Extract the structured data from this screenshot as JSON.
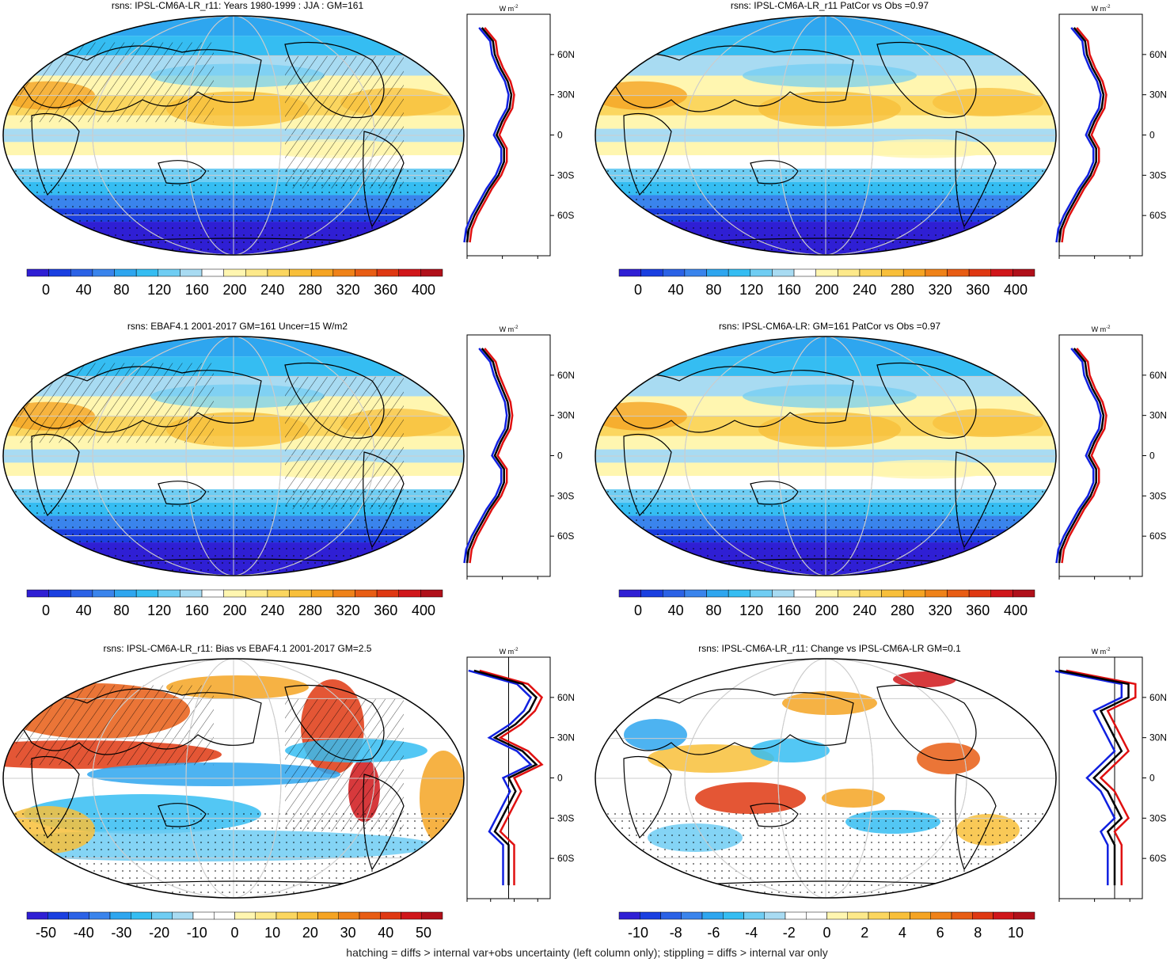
{
  "colors": {
    "abs_scale": [
      "#2f1fd4",
      "#1a3fe0",
      "#2b62e6",
      "#3a84ec",
      "#2ea6ef",
      "#35bdf2",
      "#6fcdf3",
      "#a8dbf2",
      "#ffffff",
      "#fff6b0",
      "#fde98a",
      "#fbd65f",
      "#f8bf3a",
      "#f5a423",
      "#ef8219",
      "#e85d14",
      "#df3812",
      "#d0161a",
      "#b0101a"
    ],
    "diff_scale": [
      "#2f1fd4",
      "#1a3fe0",
      "#2b62e6",
      "#3a84ec",
      "#2ea6ef",
      "#35bdf2",
      "#6fcdf3",
      "#a8dbf2",
      "#ffffff",
      "#ffffff",
      "#fff6b0",
      "#fde98a",
      "#fbd65f",
      "#f8bf3a",
      "#f5a423",
      "#ef8219",
      "#e85d14",
      "#df3812",
      "#d0161a",
      "#b0101a"
    ],
    "line_black": "#000000",
    "line_red": "#e01010",
    "line_blue": "#1020e0"
  },
  "footnote": "hatching = diffs > internal var+obs uncertainty (left column only); stippling = diffs > internal var only",
  "panels": [
    {
      "title": "rsns: IPSL-CM6A-LR_r11: Years 1980-1999 : JJA : GM=161",
      "colorbar_labels": [
        "0",
        "40",
        "80",
        "120",
        "160",
        "200",
        "240",
        "280",
        "320",
        "360",
        "400"
      ],
      "scale": "abs",
      "hatched": true,
      "profile_units": "W m-2",
      "lat_labels": [
        "60N",
        "30N",
        "0",
        "30S",
        "60S"
      ],
      "profile_ticks": [
        "0",
        "200",
        "400"
      ]
    },
    {
      "title": "rsns: IPSL-CM6A-LR_r11 PatCor vs Obs =0.97",
      "colorbar_labels": [
        "0",
        "40",
        "80",
        "120",
        "160",
        "200",
        "240",
        "280",
        "320",
        "360",
        "400"
      ],
      "scale": "abs",
      "hatched": false,
      "profile_units": "W m-2",
      "lat_labels": [
        "60N",
        "30N",
        "0",
        "30S",
        "60S"
      ],
      "profile_ticks": [
        "0",
        "200",
        "400"
      ]
    },
    {
      "title": "rsns: EBAF4.1 2001-2017 GM=161 Uncer=15 W/m2",
      "colorbar_labels": [
        "0",
        "40",
        "80",
        "120",
        "160",
        "200",
        "240",
        "280",
        "320",
        "360",
        "400"
      ],
      "scale": "abs",
      "hatched": true,
      "profile_units": "W m-2",
      "lat_labels": [
        "60N",
        "30N",
        "0",
        "30S",
        "60S"
      ],
      "profile_ticks": [
        "0",
        "200",
        "400"
      ]
    },
    {
      "title": "rsns: IPSL-CM6A-LR: GM=161 PatCor vs Obs =0.97",
      "colorbar_labels": [
        "0",
        "40",
        "80",
        "120",
        "160",
        "200",
        "240",
        "280",
        "320",
        "360",
        "400"
      ],
      "scale": "abs",
      "hatched": false,
      "profile_units": "W m-2",
      "lat_labels": [
        "60N",
        "30N",
        "0",
        "30S",
        "60S"
      ],
      "profile_ticks": [
        "0",
        "200",
        "400"
      ]
    },
    {
      "title": "rsns: IPSL-CM6A-LR_r11: Bias vs EBAF4.1 2001-2017 GM=2.5",
      "colorbar_labels": [
        "-50",
        "-40",
        "-30",
        "-20",
        "-10",
        "0",
        "10",
        "20",
        "30",
        "40",
        "50"
      ],
      "scale": "diff",
      "hatched": true,
      "profile_units": "W m-2",
      "lat_labels": [
        "60N",
        "30N",
        "0",
        "30S",
        "60S"
      ],
      "profile_ticks": [
        "-30",
        "-10",
        "10",
        "30"
      ]
    },
    {
      "title": "rsns: IPSL-CM6A-LR_r11: Change vs IPSL-CM6A-LR GM=0.1",
      "colorbar_labels": [
        "-10",
        "-8",
        "-6",
        "-4",
        "-2",
        "0",
        "2",
        "4",
        "6",
        "8",
        "10"
      ],
      "scale": "diff",
      "hatched": false,
      "profile_units": "W m-2",
      "lat_labels": [
        "60N",
        "30N",
        "0",
        "30S",
        "60S"
      ],
      "profile_ticks": [
        "-6.0",
        "-2.0",
        "2.0"
      ]
    }
  ],
  "chart_data": [
    {
      "type": "heatmap",
      "title": "rsns: IPSL-CM6A-LR_r11: Years 1980-1999 : JJA : GM=161",
      "colorbar": [
        0,
        40,
        80,
        120,
        160,
        200,
        240,
        280,
        320,
        360,
        400
      ],
      "zonal_profile": {
        "lat": [
          80,
          70,
          60,
          50,
          40,
          30,
          20,
          10,
          0,
          -10,
          -20,
          -30,
          -40,
          -50,
          -60,
          -70,
          -80
        ],
        "series": [
          {
            "values": [
              80,
              140,
              150,
              180,
              220,
              240,
              230,
              190,
              160,
              200,
              200,
              170,
              120,
              80,
              40,
              10,
              0
            ]
          }
        ]
      }
    },
    {
      "type": "heatmap",
      "title": "rsns: IPSL-CM6A-LR_r11 PatCor vs Obs =0.97",
      "colorbar": [
        0,
        40,
        80,
        120,
        160,
        200,
        240,
        280,
        320,
        360,
        400
      ],
      "zonal_profile": {
        "lat": [
          80,
          70,
          60,
          50,
          40,
          30,
          20,
          10,
          0,
          -10,
          -20,
          -30,
          -40,
          -50,
          -60,
          -70,
          -80
        ],
        "series": [
          {
            "values": [
              80,
              140,
              150,
              180,
              220,
              240,
              230,
              190,
              160,
              200,
              200,
              170,
              120,
              80,
              40,
              10,
              0
            ]
          }
        ]
      }
    },
    {
      "type": "heatmap",
      "title": "rsns: EBAF4.1 2001-2017 GM=161 Uncer=15 W/m2",
      "colorbar": [
        0,
        40,
        80,
        120,
        160,
        200,
        240,
        280,
        320,
        360,
        400
      ],
      "zonal_profile": {
        "lat": [
          80,
          70,
          60,
          50,
          40,
          30,
          20,
          10,
          0,
          -10,
          -20,
          -30,
          -40,
          -50,
          -60,
          -70,
          -80
        ],
        "series": [
          {
            "values": [
              80,
              140,
              160,
              190,
              220,
              230,
              220,
              180,
              150,
              200,
              200,
              170,
              120,
              80,
              40,
              10,
              0
            ]
          }
        ]
      }
    },
    {
      "type": "heatmap",
      "title": "rsns: IPSL-CM6A-LR: GM=161 PatCor vs Obs =0.97",
      "colorbar": [
        0,
        40,
        80,
        120,
        160,
        200,
        240,
        280,
        320,
        360,
        400
      ],
      "zonal_profile": {
        "lat": [
          80,
          70,
          60,
          50,
          40,
          30,
          20,
          10,
          0,
          -10,
          -20,
          -30,
          -40,
          -50,
          -60,
          -70,
          -80
        ],
        "series": [
          {
            "values": [
              80,
              140,
              150,
              180,
              220,
              240,
              230,
              190,
              160,
              200,
              200,
              170,
              120,
              80,
              40,
              10,
              0
            ]
          }
        ]
      }
    },
    {
      "type": "heatmap",
      "title": "rsns: IPSL-CM6A-LR_r11: Bias vs EBAF4.1 2001-2017 GM=2.5",
      "colorbar": [
        -50,
        -40,
        -30,
        -20,
        -10,
        0,
        10,
        20,
        30,
        40,
        50
      ],
      "zonal_profile": {
        "lat": [
          80,
          70,
          60,
          50,
          40,
          30,
          20,
          10,
          0,
          -10,
          -20,
          -30,
          -40,
          -50,
          -60,
          -70,
          -80
        ],
        "series": [
          {
            "values": [
              -25,
              10,
              20,
              15,
              5,
              -10,
              10,
              20,
              0,
              5,
              0,
              -5,
              -10,
              0,
              0,
              0,
              0
            ]
          }
        ]
      }
    },
    {
      "type": "heatmap",
      "title": "rsns: IPSL-CM6A-LR_r11: Change vs IPSL-CM6A-LR GM=0.1",
      "colorbar": [
        -10,
        -8,
        -6,
        -4,
        -2,
        0,
        2,
        4,
        6,
        8,
        10
      ],
      "zonal_profile": {
        "lat": [
          80,
          70,
          60,
          50,
          40,
          30,
          20,
          10,
          0,
          -10,
          -20,
          -30,
          -40,
          -50,
          -60,
          -70,
          -80
        ],
        "series": [
          {
            "values": [
              -8,
              2,
              2,
              -2,
              -1,
              0,
              1,
              -1,
              -3,
              -1,
              0,
              1,
              -1,
              0,
              0,
              0,
              0
            ]
          }
        ]
      }
    }
  ]
}
